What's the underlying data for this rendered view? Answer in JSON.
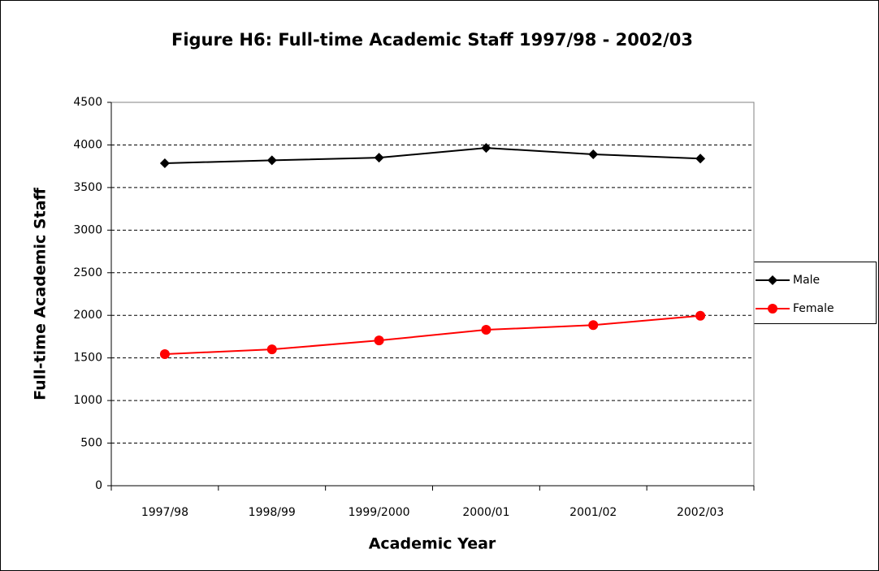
{
  "chart_data": {
    "type": "line",
    "title": "Figure H6: Full-time Academic Staff  1997/98 - 2002/03",
    "x_label": "Academic Year",
    "y_label": "Full-time Academic Staff",
    "categories": [
      "1997/98",
      "1998/99",
      "1999/2000",
      "2000/01",
      "2001/02",
      "2002/03"
    ],
    "series": [
      {
        "name": "Male",
        "color": "#000000",
        "marker": "diamond",
        "values": [
          3785,
          3820,
          3850,
          3965,
          3890,
          3840
        ]
      },
      {
        "name": "Female",
        "color": "#ff0000",
        "marker": "circle",
        "values": [
          1545,
          1600,
          1705,
          1830,
          1885,
          1995
        ]
      }
    ],
    "ylim": [
      0,
      4500
    ],
    "yticks": [
      0,
      500,
      1000,
      1500,
      2000,
      2500,
      3000,
      3500,
      4000,
      4500
    ],
    "grid": true,
    "legend": "right"
  }
}
